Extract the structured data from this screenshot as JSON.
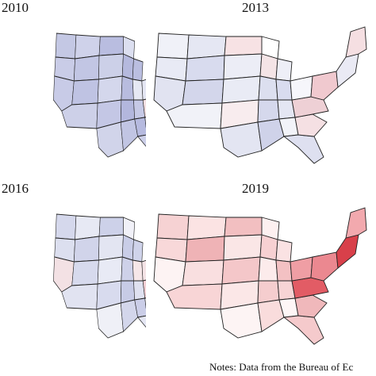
{
  "panels": [
    {
      "year": "2010",
      "shades": [
        "#c4c8e4",
        "#cfd2ea",
        "#b9bde0",
        "#dcdff0",
        "#c9cce7",
        "#c2c6e4",
        "#ccd0e8",
        "#b5b9de",
        "#c8cbe7",
        "#bfc3e3",
        "#d4d7ec",
        "#b8bcdf",
        "#cdd0e8",
        "#c4c7e5",
        "#b3b7dd",
        "#d1d4ea",
        "#c1c5e3",
        "#babee0",
        "#e6e8f3",
        "#c6c9e6",
        "#b6badf",
        "#cbcee8",
        "#d9dbef",
        "#f3dfe2",
        "#e4e6f3",
        "#dfe1f1",
        "#f2d6da",
        "#e8eaf4"
      ]
    },
    {
      "year": "2013",
      "shades": [
        "#f0f1f8",
        "#e5e7f3",
        "#f7e2e4",
        "#ffffff",
        "#e8eaf5",
        "#d8dbee",
        "#ecedf6",
        "#f4e4e6",
        "#e1e3f1",
        "#d3d6eb",
        "#e9ebf5",
        "#dcdfef",
        "#f1f2f8",
        "#f8ecee",
        "#d5d8ec",
        "#e3e5f2",
        "#cfd2e9",
        "#eeeff7",
        "#d9dcef",
        "#e4e6f3",
        "#f2f3f9",
        "#dee0f0",
        "#f5e0e3",
        "#eed0d5",
        "#f6f6fb",
        "#f0c9cf",
        "#eaeaf4",
        "#f5dfe2"
      ]
    },
    {
      "year": "2016",
      "shades": [
        "#d5d8ec",
        "#e7e9f4",
        "#cdd1e9",
        "#f1f1f8",
        "#dcdfef",
        "#d1d4ea",
        "#e3e5f2",
        "#c9cde7",
        "#f3e1e4",
        "#d7daed",
        "#e8eaf5",
        "#ced1e9",
        "#e1e3f1",
        "#d8dbee",
        "#c7cbe6",
        "#eff0f7",
        "#d3d6eb",
        "#cfd3ea",
        "#f6e6e8",
        "#dfe1f0",
        "#cbcee8",
        "#e4e6f3",
        "#f1f2f8",
        "#f2cfd4",
        "#f4e3e6",
        "#f7e4e6",
        "#e9a9b3",
        "#f4dade"
      ]
    },
    {
      "year": "2019",
      "shades": [
        "#f6d2d3",
        "#fbe3e3",
        "#f2bfc1",
        "#fdf0f0",
        "#f8d8d9",
        "#efb3b6",
        "#fae6e6",
        "#f7d0d2",
        "#fdf3f3",
        "#f9dfe0",
        "#f4c7c9",
        "#fcebeb",
        "#f8d5d6",
        "#fbe7e7",
        "#f5cdce",
        "#fdf4f4",
        "#f9dcdc",
        "#fae2e3",
        "#f3c1c3",
        "#f7d4d5",
        "#fef6f6",
        "#f5cacc",
        "#f0b8bb",
        "#e25c65",
        "#ef9ea4",
        "#eb8890",
        "#d8404a",
        "#f2a9ae"
      ]
    }
  ],
  "notes": "Notes: Data from the Bureau of Ec"
}
